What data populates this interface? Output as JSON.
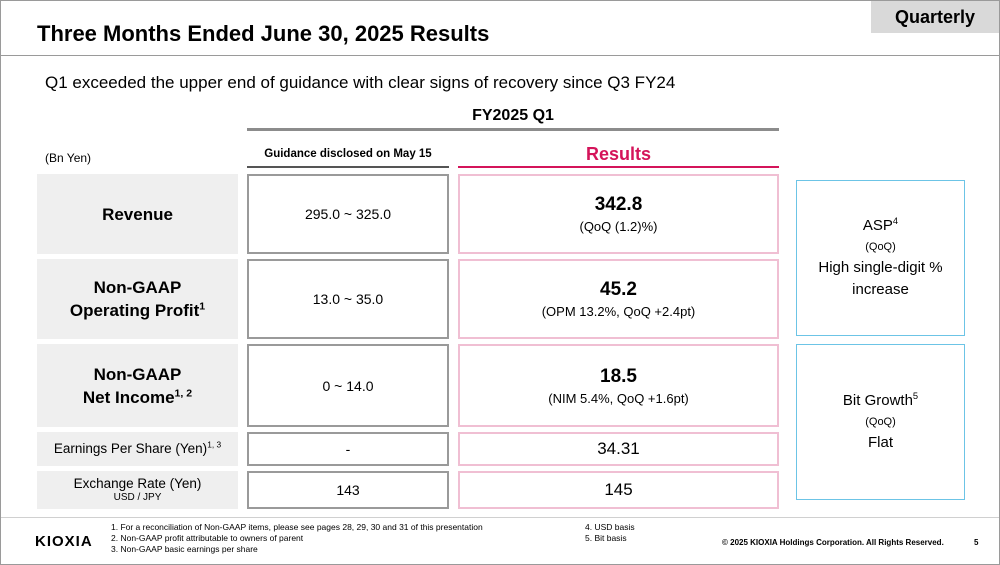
{
  "header": {
    "tag": "Quarterly",
    "title": "Three Months Ended June 30, 2025 Results",
    "subtitle": "Q1 exceeded the upper end of guidance with clear signs of recovery since Q3 FY24"
  },
  "table": {
    "period_header": "FY2025 Q1",
    "unit": "(Bn Yen)",
    "guidance_header": "Guidance disclosed on May 15",
    "results_header": "Results",
    "rows": [
      {
        "label_line1": "Revenue",
        "label_line2": "",
        "sup": "",
        "guidance": "295.0 ~ 325.0",
        "result": "342.8",
        "note": "(QoQ (1.2)%)"
      },
      {
        "label_line1": "Non-GAAP",
        "label_line2": "Operating Profit",
        "sup": "1",
        "guidance": "13.0 ~ 35.0",
        "result": "45.2",
        "note": "(OPM 13.2%, QoQ +2.4pt)"
      },
      {
        "label_line1": "Non-GAAP",
        "label_line2": "Net Income",
        "sup": "1, 2",
        "guidance": "0 ~ 14.0",
        "result": "18.5",
        "note": "(NIM 5.4%, QoQ +1.6pt)"
      },
      {
        "label_line1": "Earnings Per Share (Yen)",
        "label_line2": "",
        "sup": "1, 3",
        "guidance": "-",
        "result": "34.31",
        "note": ""
      },
      {
        "label_line1": "Exchange Rate (Yen)",
        "label_line2": "USD / JPY",
        "sup": "",
        "guidance": "143",
        "result": "145",
        "note": ""
      }
    ]
  },
  "side": {
    "asp": {
      "title": "ASP",
      "sup": "4",
      "sub": "(QoQ)",
      "line1": "High single-digit %",
      "line2": "increase"
    },
    "bit": {
      "title": "Bit Growth",
      "sup": "5",
      "sub": "(QoQ)",
      "line1": "Flat"
    }
  },
  "footer": {
    "logo": "KIOXIA",
    "notes_left": [
      "1. For a reconciliation of Non-GAAP items, please see pages 28, 29, 30 and 31 of this presentation",
      "2. Non-GAAP profit attributable to owners of parent",
      "3. Non-GAAP basic earnings per share"
    ],
    "notes_right": [
      "4. USD basis",
      "5. Bit basis"
    ],
    "copyright": "© 2025 KIOXIA Holdings Corporation. All Rights Reserved.",
    "page": "5"
  }
}
